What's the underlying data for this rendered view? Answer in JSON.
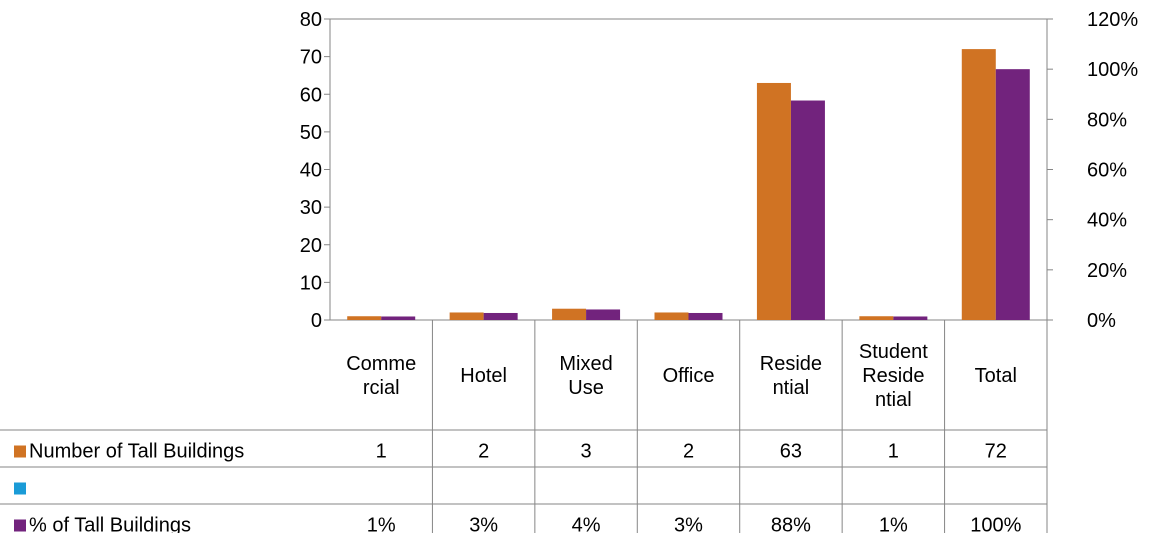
{
  "chart_data": {
    "type": "bar",
    "categories": [
      [
        "Comme",
        "rcial"
      ],
      [
        "Hotel"
      ],
      [
        "Mixed",
        "Use"
      ],
      [
        "Office"
      ],
      [
        "Reside",
        "ntial"
      ],
      [
        "Student",
        "Reside",
        "ntial"
      ],
      [
        "Total"
      ]
    ],
    "series": [
      {
        "name": "Number of Tall Buildings",
        "axis": "left",
        "color": "#D07323",
        "values": [
          1,
          2,
          3,
          2,
          63,
          1,
          72
        ],
        "table_labels": [
          "1",
          "2",
          "3",
          "2",
          "63",
          "1",
          "72"
        ]
      },
      {
        "name": "",
        "axis": "left",
        "color": "#1A9BD7",
        "values": [
          null,
          null,
          null,
          null,
          null,
          null,
          null
        ],
        "table_labels": [
          "",
          "",
          "",
          "",
          "",
          "",
          ""
        ]
      },
      {
        "name": "% of Tall Buildings",
        "axis": "right",
        "color": "#72237D",
        "values": [
          1.4,
          2.8,
          4.2,
          2.8,
          87.5,
          1.4,
          100
        ],
        "table_labels": [
          "1%",
          "3%",
          "4%",
          "3%",
          "88%",
          "1%",
          "100%"
        ]
      }
    ],
    "left_axis": {
      "min": 0,
      "max": 80,
      "step": 10,
      "ticks": [
        "0",
        "10",
        "20",
        "30",
        "40",
        "50",
        "60",
        "70",
        "80"
      ]
    },
    "right_axis": {
      "min": 0,
      "max": 120,
      "step": 20,
      "ticks": [
        "0%",
        "20%",
        "40%",
        "60%",
        "80%",
        "100%",
        "120%"
      ]
    },
    "gridlines": false,
    "legend": "data-table-left"
  }
}
